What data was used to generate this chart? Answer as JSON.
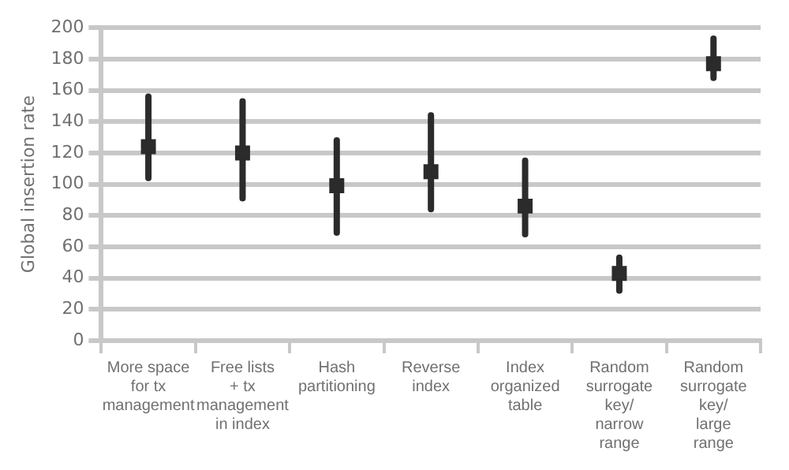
{
  "chart_data": {
    "type": "scatter",
    "ylabel": "Global insertion rate",
    "categories": [
      "More space for tx management",
      "Free lists + tx management in index",
      "Hash partitioning",
      "Reverse index",
      "Index organized table",
      "Random surrogate key/ narrow range",
      "Random surrogate key/ large range"
    ],
    "values": [
      124,
      120,
      99,
      108,
      86,
      43,
      177
    ],
    "errors": [
      [
        104,
        156
      ],
      [
        91,
        153
      ],
      [
        69,
        128
      ],
      [
        84,
        144
      ],
      [
        68,
        115
      ],
      [
        32,
        53
      ],
      [
        168,
        193
      ]
    ],
    "color": "#2b2b2b",
    "marker": "square",
    "ylim": [
      0,
      200
    ],
    "yticks": [
      0,
      20,
      40,
      60,
      80,
      100,
      120,
      140,
      160,
      180,
      200
    ],
    "grid": "y",
    "legend": false
  }
}
